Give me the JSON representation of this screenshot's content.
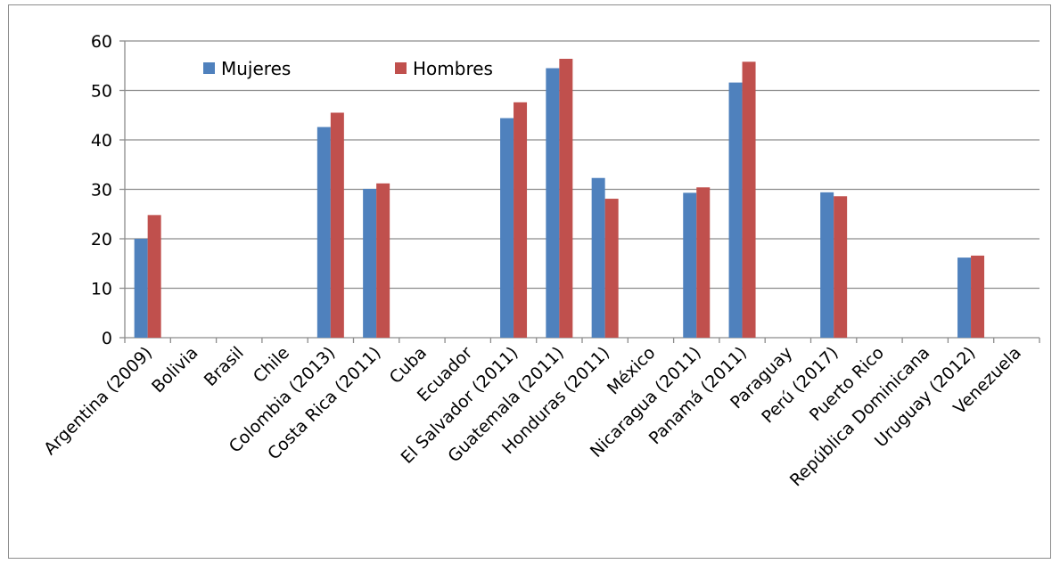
{
  "chart_data": {
    "type": "bar",
    "categories": [
      "Argentina (2009)",
      "Bolivia",
      "Brasil",
      "Chile",
      "Colombia (2013)",
      "Costa Rica (2011)",
      "Cuba",
      "Ecuador",
      "El Salvador (2011)",
      "Guatemala (2011)",
      "Honduras (2011)",
      "México",
      "Nicaragua (2011)",
      "Panamá (2011)",
      "Paraguay",
      "Perú (2017)",
      "Puerto Rico",
      "República Dominicana",
      "Uruguay (2012)",
      "Venezuela"
    ],
    "series": [
      {
        "name": "Mujeres",
        "color": "#4f81bd",
        "values": [
          20.0,
          null,
          null,
          null,
          42.6,
          30.1,
          null,
          null,
          44.4,
          54.5,
          32.3,
          null,
          29.3,
          51.6,
          null,
          29.4,
          null,
          null,
          16.2,
          null
        ]
      },
      {
        "name": "Hombres",
        "color": "#c0504d",
        "values": [
          24.8,
          null,
          null,
          null,
          45.5,
          31.2,
          null,
          null,
          47.6,
          56.4,
          28.1,
          null,
          30.4,
          55.8,
          null,
          28.6,
          null,
          null,
          16.6,
          null
        ]
      }
    ],
    "ylim": [
      0,
      60
    ],
    "yticks": [
      0,
      10,
      20,
      30,
      40,
      50,
      60
    ],
    "grid": true,
    "legend": "top-left"
  }
}
